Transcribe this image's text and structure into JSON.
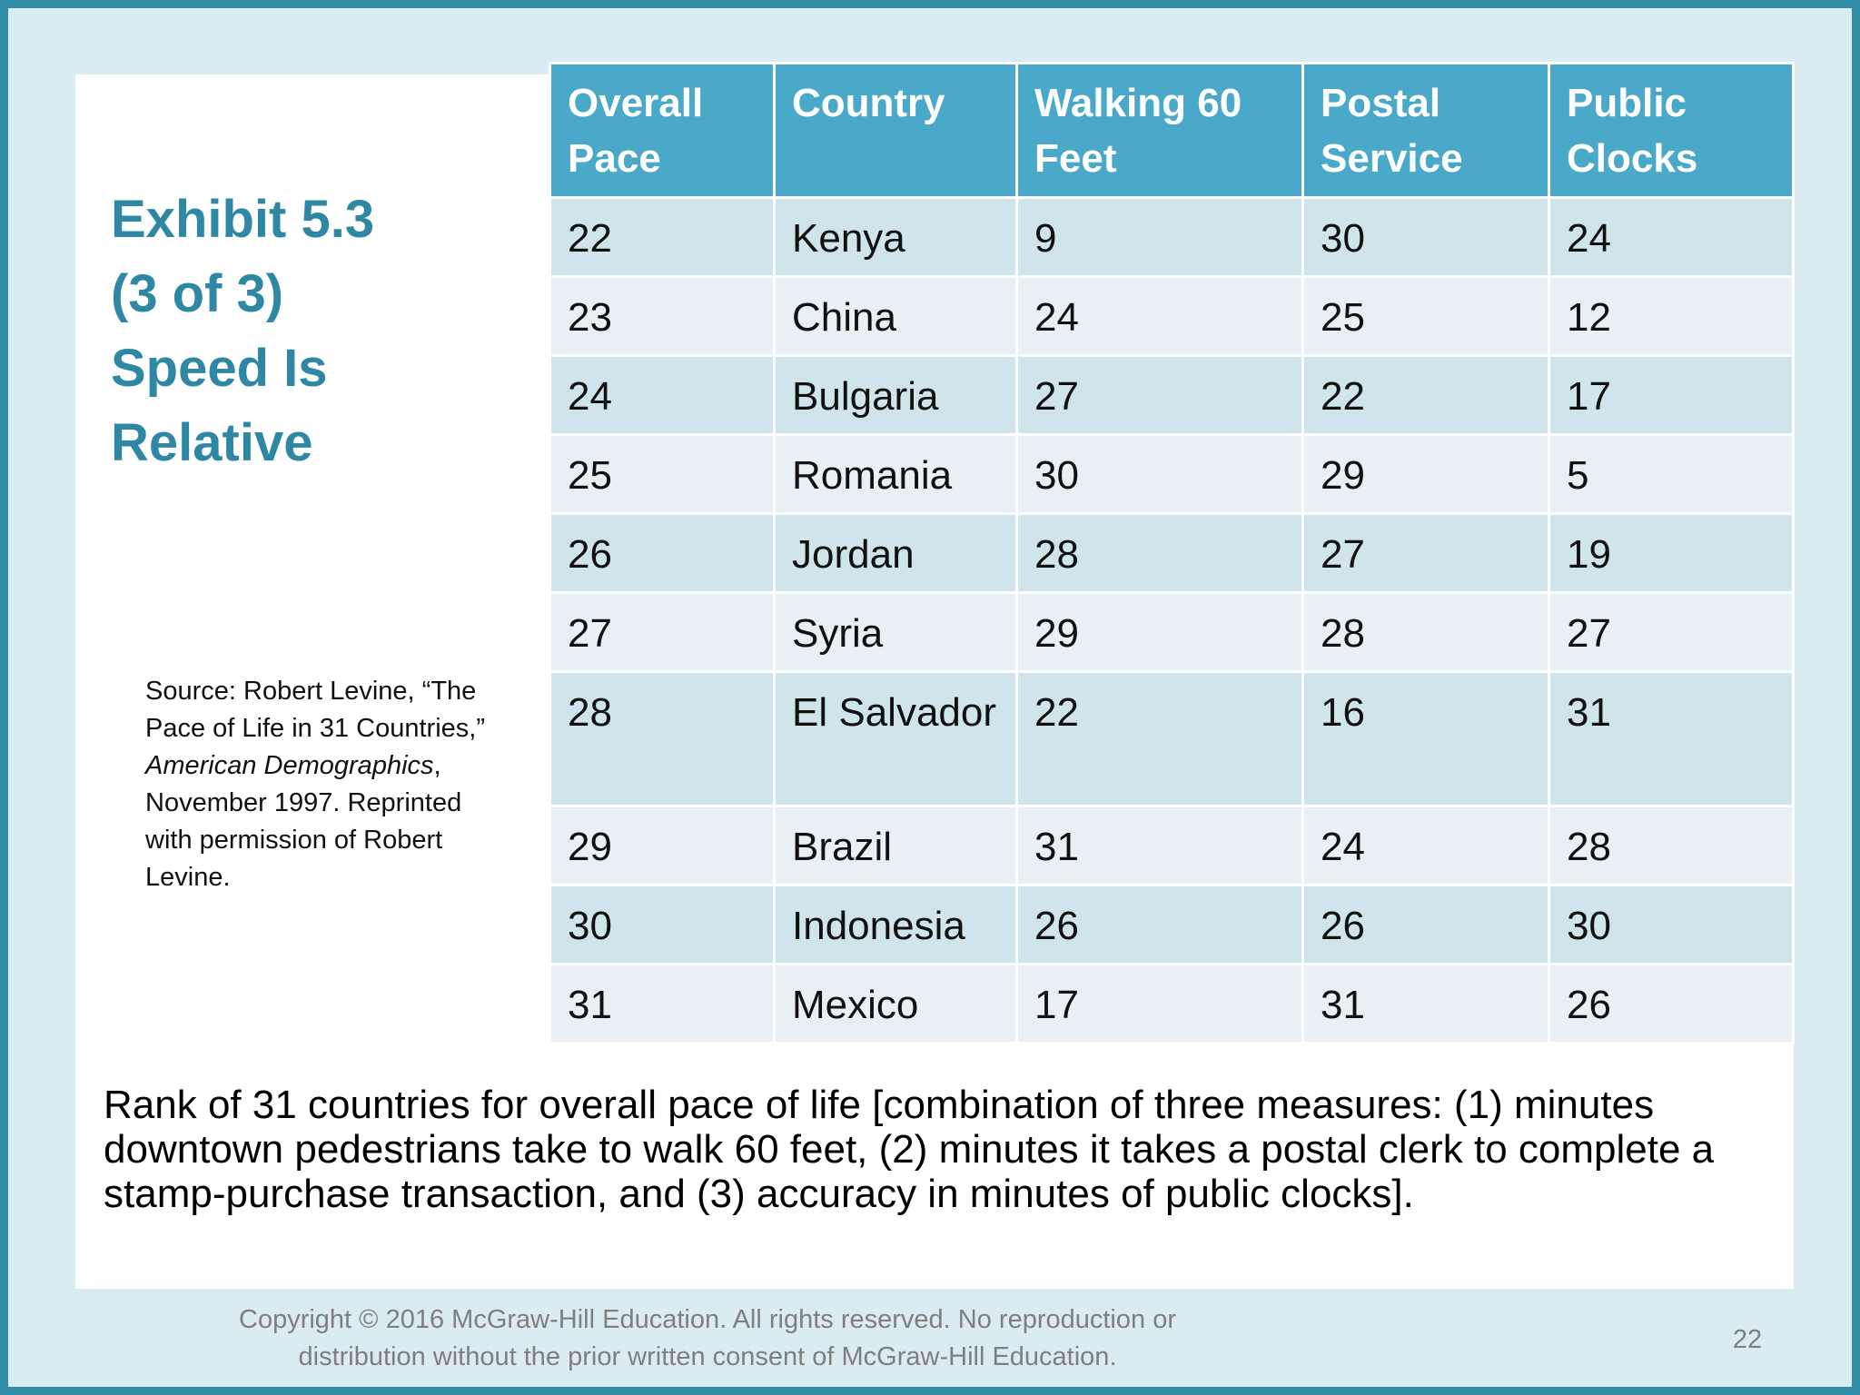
{
  "slide": {
    "title_lines": [
      "Exhibit 5.3",
      "(3 of 3)",
      "Speed Is",
      "Relative"
    ],
    "source": {
      "prefix": "Source: Robert Levine, “The Pace of Life in 31 Countries,” ",
      "publication": "American Demographics",
      "suffix": ", November 1997. Reprinted with permission of Robert Levine."
    },
    "table": {
      "headers": [
        "Overall Pace",
        "Country",
        "Walking 60 Feet",
        "Postal Service",
        "Public Clocks"
      ],
      "rows": [
        [
          "22",
          "Kenya",
          "9",
          "30",
          "24"
        ],
        [
          "23",
          "China",
          "24",
          "25",
          "12"
        ],
        [
          "24",
          "Bulgaria",
          "27",
          "22",
          "17"
        ],
        [
          "25",
          "Romania",
          "30",
          "29",
          "5"
        ],
        [
          "26",
          "Jordan",
          "28",
          "27",
          "19"
        ],
        [
          "27",
          "Syria",
          "29",
          "28",
          "27"
        ],
        [
          "28",
          "El Salvador",
          "22",
          "16",
          "31"
        ],
        [
          "29",
          "Brazil",
          "31",
          "24",
          "28"
        ],
        [
          "30",
          "Indonesia",
          "26",
          "26",
          "30"
        ],
        [
          "31",
          "Mexico",
          "17",
          "31",
          "26"
        ]
      ]
    },
    "caption": "Rank of 31 countries for overall pace of life [combination of three measures: (1) minutes downtown pedestrians take to walk 60 feet, (2) minutes it takes a postal clerk to complete a stamp-purchase transaction, and (3) accuracy in minutes of public clocks].",
    "footer": {
      "copyright_lines": [
        "Copyright © 2016 McGraw-Hill Education. All rights reserved. No reproduction or",
        "distribution without the prior written consent of McGraw-Hill Education."
      ],
      "page_number": "22"
    },
    "colors": {
      "frame": "#338da6",
      "background": "#daecf2",
      "title": "#2f88a3",
      "header_fill": "#4aa8c8",
      "row_dark": "#d0e5eb",
      "row_light": "#e8f0f5"
    }
  }
}
